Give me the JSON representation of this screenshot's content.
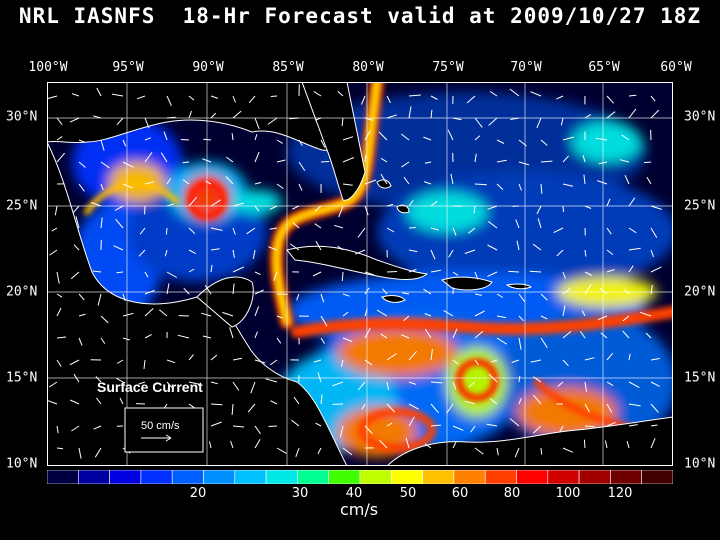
{
  "title": "NRL IASNFS  18-Hr Forecast valid at 2009/10/27 18Z",
  "lon_labels": [
    "100°W",
    "95°W",
    "90°W",
    "85°W",
    "80°W",
    "75°W",
    "70°W",
    "65°W",
    "60°W"
  ],
  "lat_labels": [
    "30°N",
    "25°N",
    "20°N",
    "15°N",
    "10°N"
  ],
  "legend": {
    "title": "Surface Current",
    "scale_label": "50 cm/s"
  },
  "colorbar": {
    "ticks": [
      "20",
      "30",
      "40",
      "50",
      "60",
      "80",
      "100",
      "120"
    ],
    "units": "cm/s",
    "colors": [
      "#000040",
      "#0000a0",
      "#0000e0",
      "#0030ff",
      "#0060ff",
      "#0090ff",
      "#00c0ff",
      "#00e8e8",
      "#00ff90",
      "#40ff00",
      "#c0ff00",
      "#ffff00",
      "#ffc000",
      "#ff8000",
      "#ff4000",
      "#ff0000",
      "#d00000",
      "#a00000",
      "#700000",
      "#400000"
    ]
  },
  "colors": {
    "ocean": "#000030",
    "land": "#000000",
    "coast": "#ffffff",
    "grid": "#ffffff"
  }
}
